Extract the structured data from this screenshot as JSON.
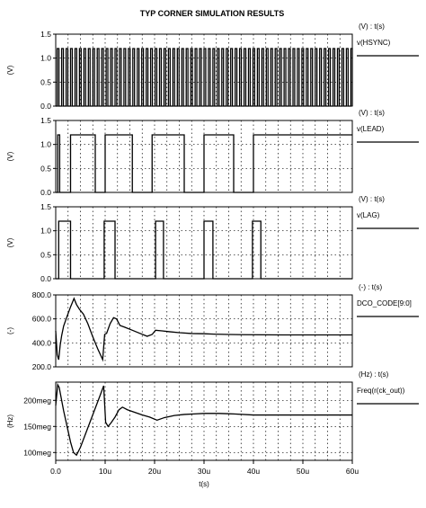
{
  "title": "TYP CORNER SIMULATION RESULTS",
  "colors": {
    "background": "#ffffff",
    "ink": "#000000"
  },
  "chart_data": [
    {
      "type": "line",
      "name": "v(HSYNC)",
      "axis_label": "(V) : t(s)",
      "ylabel": "(V)",
      "legend": "v(HSYNC)",
      "ylim": [
        0.0,
        1.5
      ],
      "yticks": [
        "1.5",
        "1.0",
        "0.5",
        "0.0"
      ],
      "ytick_values": [
        1.5,
        1.0,
        0.5,
        0.0
      ],
      "xlim": [
        0,
        60
      ],
      "grid": true,
      "pulse_train": {
        "period_us": 0.9,
        "width_us": 0.35,
        "low": 0.0,
        "high": 1.2,
        "start_us": 0.3
      }
    },
    {
      "type": "line",
      "name": "v(LEAD)",
      "axis_label": "(V) : t(s)",
      "ylabel": "(V)",
      "legend": "v(LEAD)",
      "ylim": [
        0.0,
        1.5
      ],
      "yticks": [
        "1.5",
        "1.0",
        "0.5",
        "0.0"
      ],
      "ytick_values": [
        1.5,
        1.0,
        0.5,
        0.0
      ],
      "xlim": [
        0,
        60
      ],
      "grid": true,
      "x": [
        0,
        0.4,
        0.4,
        0.8,
        0.8,
        3,
        3,
        8,
        8,
        10,
        10,
        15.5,
        15.5,
        19.5,
        19.5,
        26,
        26,
        30,
        30,
        36,
        36,
        40,
        40,
        60
      ],
      "y": [
        0,
        0,
        1.2,
        1.2,
        0,
        0,
        1.2,
        1.2,
        0,
        0,
        1.2,
        1.2,
        0,
        0,
        1.2,
        1.2,
        0,
        0,
        1.2,
        1.2,
        0,
        0,
        1.2,
        1.2
      ]
    },
    {
      "type": "line",
      "name": "v(LAG)",
      "axis_label": "(V) : t(s)",
      "ylabel": "(V)",
      "legend": "v(LAG)",
      "ylim": [
        0.0,
        1.5
      ],
      "yticks": [
        "1.5",
        "1.0",
        "0.5",
        "0.0"
      ],
      "ytick_values": [
        1.5,
        1.0,
        0.5,
        0.0
      ],
      "xlim": [
        0,
        60
      ],
      "grid": true,
      "x": [
        0,
        0.6,
        0.6,
        3,
        3,
        9.8,
        9.8,
        12,
        12,
        20.2,
        20.2,
        21.8,
        21.8,
        30,
        30,
        31.8,
        31.8,
        39.8,
        39.8,
        41.5,
        41.5,
        60
      ],
      "y": [
        0,
        0,
        1.2,
        1.2,
        0,
        0,
        1.2,
        1.2,
        0,
        0,
        1.2,
        1.2,
        0,
        0,
        1.2,
        1.2,
        0,
        0,
        1.2,
        1.2,
        0,
        0
      ]
    },
    {
      "type": "line",
      "name": "DCO_CODE[9:0]",
      "axis_label": "(-) : t(s)",
      "ylabel": "(-)",
      "legend": "DCO_CODE[9:0]",
      "ylim": [
        200,
        800
      ],
      "yticks": [
        "800.0",
        "600.0",
        "400.0",
        "200.0"
      ],
      "ytick_values": [
        800,
        600,
        400,
        200
      ],
      "xlim": [
        0,
        60
      ],
      "grid": true,
      "x": [
        0,
        0.3,
        0.6,
        0.9,
        1.2,
        1.6,
        2.2,
        3.0,
        3.7,
        4.2,
        4.8,
        5.6,
        6.5,
        7.5,
        8.5,
        9.5,
        9.9,
        10.3,
        11.0,
        11.7,
        12.3,
        13.0,
        14.0,
        15.5,
        17.0,
        18.5,
        19.5,
        20.2,
        21.5,
        23,
        25,
        27.5,
        30,
        32,
        35,
        38,
        42,
        46,
        50,
        55,
        60
      ],
      "y": [
        500,
        300,
        260,
        380,
        460,
        540,
        610,
        700,
        770,
        720,
        680,
        640,
        560,
        450,
        350,
        260,
        470,
        480,
        560,
        610,
        600,
        545,
        530,
        505,
        480,
        455,
        470,
        505,
        500,
        493,
        485,
        478,
        476,
        473,
        470,
        468,
        467,
        466,
        466,
        466,
        466
      ]
    },
    {
      "type": "line",
      "name": "Freq(r(ck_out))",
      "axis_label": "(Hz) : t(s)",
      "ylabel": "(Hz)",
      "legend": "Freq(r(ck_out))",
      "ylim": [
        85,
        235
      ],
      "yticks": [
        "200meg",
        "150meg",
        "100meg"
      ],
      "ytick_values": [
        200,
        150,
        100
      ],
      "xlim": [
        0,
        60
      ],
      "xlabel": "t(s)",
      "xticks": [
        "0.0",
        "10u",
        "20u",
        "30u",
        "40u",
        "50u",
        "60u"
      ],
      "xtick_values": [
        0,
        10,
        20,
        30,
        40,
        50,
        60
      ],
      "grid": true,
      "x": [
        0,
        0.4,
        0.7,
        1.1,
        1.6,
        2.3,
        3.0,
        3.6,
        4.2,
        5.0,
        6.0,
        7.0,
        8.0,
        9.0,
        9.7,
        10.1,
        10.6,
        11.2,
        12.0,
        12.8,
        13.5,
        14.5,
        16,
        17.5,
        19,
        20.5,
        22,
        24,
        26,
        28,
        30,
        33,
        36,
        40,
        45,
        50,
        55,
        60
      ],
      "y": [
        190,
        230,
        225,
        205,
        180,
        150,
        120,
        100,
        95,
        110,
        135,
        160,
        185,
        210,
        228,
        158,
        150,
        157,
        168,
        182,
        187,
        182,
        177,
        172,
        168,
        162,
        167,
        171,
        173,
        174,
        175,
        175,
        174,
        172,
        172,
        172,
        172,
        172
      ]
    }
  ]
}
